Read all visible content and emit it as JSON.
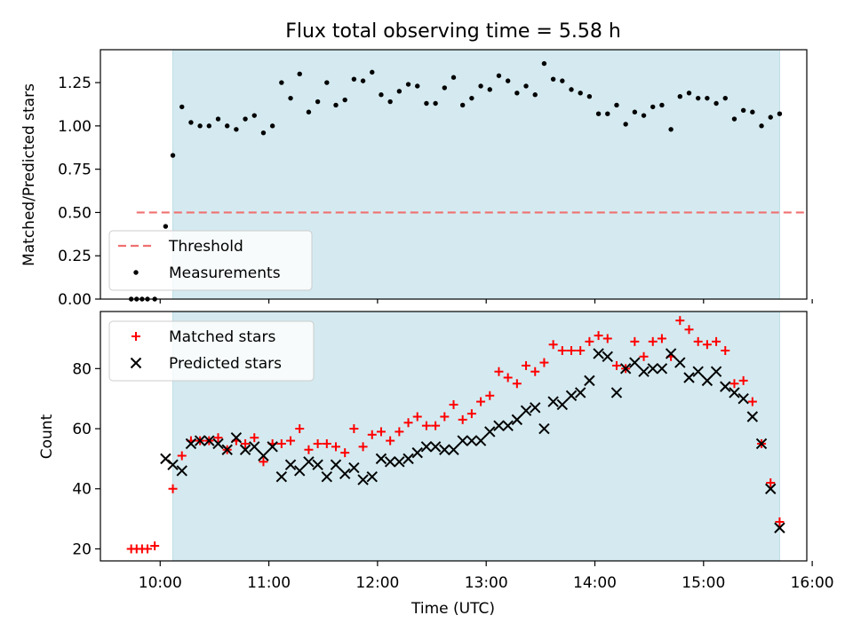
{
  "chart_data": [
    {
      "type": "scatter",
      "title": "Flux total observing time = 5.58 h",
      "xlabel": "",
      "ylabel": "Matched/Predicted stars",
      "xlim": [
        "09:27",
        "15:57"
      ],
      "ylim": [
        0,
        1.44
      ],
      "y_ticks": [
        "0.00",
        "0.25",
        "0.50",
        "0.75",
        "1.00",
        "1.25"
      ],
      "shaded_interval": [
        "10:07",
        "15:42"
      ],
      "threshold": 0.5,
      "legend": {
        "placement": "lower-left",
        "entries": [
          "Threshold",
          "Measurements"
        ]
      },
      "series": [
        {
          "name": "Measurements",
          "points": [
            [
              "09:44",
              0
            ],
            [
              "09:47",
              0
            ],
            [
              "09:50",
              0
            ],
            [
              "09:53",
              0
            ],
            [
              "09:57",
              0
            ],
            [
              "10:03",
              0.42
            ],
            [
              "10:07",
              0.83
            ],
            [
              "10:12",
              1.11
            ],
            [
              "10:17",
              1.02
            ],
            [
              "10:22",
              1.0
            ],
            [
              "10:27",
              1.0
            ],
            [
              "10:32",
              1.04
            ],
            [
              "10:37",
              1.0
            ],
            [
              "10:42",
              0.98
            ],
            [
              "10:47",
              1.04
            ],
            [
              "10:52",
              1.06
            ],
            [
              "10:57",
              0.96
            ],
            [
              "11:02",
              1.0
            ],
            [
              "11:07",
              1.25
            ],
            [
              "11:12",
              1.16
            ],
            [
              "11:17",
              1.3
            ],
            [
              "11:22",
              1.08
            ],
            [
              "11:27",
              1.14
            ],
            [
              "11:32",
              1.25
            ],
            [
              "11:37",
              1.12
            ],
            [
              "11:42",
              1.15
            ],
            [
              "11:47",
              1.27
            ],
            [
              "11:52",
              1.26
            ],
            [
              "11:57",
              1.31
            ],
            [
              "12:02",
              1.18
            ],
            [
              "12:07",
              1.14
            ],
            [
              "12:12",
              1.2
            ],
            [
              "12:17",
              1.24
            ],
            [
              "12:22",
              1.23
            ],
            [
              "12:27",
              1.13
            ],
            [
              "12:32",
              1.13
            ],
            [
              "12:37",
              1.22
            ],
            [
              "12:42",
              1.28
            ],
            [
              "12:47",
              1.12
            ],
            [
              "12:52",
              1.16
            ],
            [
              "12:57",
              1.23
            ],
            [
              "13:02",
              1.21
            ],
            [
              "13:07",
              1.29
            ],
            [
              "13:12",
              1.26
            ],
            [
              "13:17",
              1.19
            ],
            [
              "13:22",
              1.23
            ],
            [
              "13:27",
              1.18
            ],
            [
              "13:32",
              1.36
            ],
            [
              "13:37",
              1.27
            ],
            [
              "13:42",
              1.26
            ],
            [
              "13:47",
              1.21
            ],
            [
              "13:52",
              1.19
            ],
            [
              "13:57",
              1.17
            ],
            [
              "14:02",
              1.07
            ],
            [
              "14:07",
              1.07
            ],
            [
              "14:12",
              1.12
            ],
            [
              "14:17",
              1.01
            ],
            [
              "14:22",
              1.08
            ],
            [
              "14:27",
              1.06
            ],
            [
              "14:32",
              1.11
            ],
            [
              "14:37",
              1.12
            ],
            [
              "14:42",
              0.98
            ],
            [
              "14:47",
              1.17
            ],
            [
              "14:52",
              1.19
            ],
            [
              "14:57",
              1.16
            ],
            [
              "15:02",
              1.16
            ],
            [
              "15:07",
              1.13
            ],
            [
              "15:12",
              1.16
            ],
            [
              "15:17",
              1.04
            ],
            [
              "15:22",
              1.09
            ],
            [
              "15:27",
              1.08
            ],
            [
              "15:32",
              1.0
            ],
            [
              "15:37",
              1.05
            ],
            [
              "15:42",
              1.07
            ]
          ]
        }
      ]
    },
    {
      "type": "scatter",
      "title": "",
      "xlabel": "Time (UTC)",
      "ylabel": "Count",
      "xlim": [
        "09:27",
        "15:57"
      ],
      "ylim": [
        16,
        99
      ],
      "x_ticks": [
        "10:00",
        "11:00",
        "12:00",
        "13:00",
        "14:00",
        "15:00",
        "16:00"
      ],
      "y_ticks": [
        "20",
        "40",
        "60",
        "80"
      ],
      "shaded_interval": [
        "10:07",
        "15:42"
      ],
      "legend": {
        "placement": "top-left",
        "entries": [
          "Matched stars",
          "Predicted stars"
        ]
      },
      "series": [
        {
          "name": "Matched stars",
          "color": "#ff0000",
          "marker": "plus",
          "points": [
            [
              "09:44",
              20
            ],
            [
              "09:47",
              20
            ],
            [
              "09:50",
              20
            ],
            [
              "09:53",
              20
            ],
            [
              "09:57",
              21
            ],
            [
              "10:07",
              40
            ],
            [
              "10:12",
              51
            ],
            [
              "10:17",
              56
            ],
            [
              "10:22",
              56
            ],
            [
              "10:27",
              56
            ],
            [
              "10:32",
              57
            ],
            [
              "10:37",
              53
            ],
            [
              "10:42",
              56
            ],
            [
              "10:47",
              55
            ],
            [
              "10:52",
              57
            ],
            [
              "10:57",
              49
            ],
            [
              "11:02",
              55
            ],
            [
              "11:07",
              55
            ],
            [
              "11:12",
              56
            ],
            [
              "11:17",
              60
            ],
            [
              "11:22",
              53
            ],
            [
              "11:27",
              55
            ],
            [
              "11:32",
              55
            ],
            [
              "11:37",
              54
            ],
            [
              "11:42",
              52
            ],
            [
              "11:47",
              60
            ],
            [
              "11:52",
              54
            ],
            [
              "11:57",
              58
            ],
            [
              "12:02",
              59
            ],
            [
              "12:07",
              56
            ],
            [
              "12:12",
              59
            ],
            [
              "12:17",
              62
            ],
            [
              "12:22",
              64
            ],
            [
              "12:27",
              61
            ],
            [
              "12:32",
              61
            ],
            [
              "12:37",
              64
            ],
            [
              "12:42",
              68
            ],
            [
              "12:47",
              63
            ],
            [
              "12:52",
              65
            ],
            [
              "12:57",
              69
            ],
            [
              "13:02",
              71
            ],
            [
              "13:07",
              79
            ],
            [
              "13:12",
              77
            ],
            [
              "13:17",
              75
            ],
            [
              "13:22",
              81
            ],
            [
              "13:27",
              79
            ],
            [
              "13:32",
              82
            ],
            [
              "13:37",
              88
            ],
            [
              "13:42",
              86
            ],
            [
              "13:47",
              86
            ],
            [
              "13:52",
              86
            ],
            [
              "13:57",
              89
            ],
            [
              "14:02",
              91
            ],
            [
              "14:07",
              90
            ],
            [
              "14:12",
              81
            ],
            [
              "14:17",
              80
            ],
            [
              "14:22",
              89
            ],
            [
              "14:27",
              84
            ],
            [
              "14:32",
              89
            ],
            [
              "14:37",
              90
            ],
            [
              "14:42",
              84
            ],
            [
              "14:47",
              96
            ],
            [
              "14:52",
              93
            ],
            [
              "14:57",
              89
            ],
            [
              "15:02",
              88
            ],
            [
              "15:07",
              89
            ],
            [
              "15:12",
              86
            ],
            [
              "15:17",
              75
            ],
            [
              "15:22",
              76
            ],
            [
              "15:27",
              69
            ],
            [
              "15:32",
              55
            ],
            [
              "15:37",
              42
            ],
            [
              "15:42",
              29
            ]
          ]
        },
        {
          "name": "Predicted stars",
          "color": "#000000",
          "marker": "x",
          "points": [
            [
              "10:03",
              50
            ],
            [
              "10:07",
              48
            ],
            [
              "10:12",
              46
            ],
            [
              "10:17",
              55
            ],
            [
              "10:22",
              56
            ],
            [
              "10:27",
              56
            ],
            [
              "10:32",
              55
            ],
            [
              "10:37",
              53
            ],
            [
              "10:42",
              57
            ],
            [
              "10:47",
              53
            ],
            [
              "10:52",
              54
            ],
            [
              "10:57",
              51
            ],
            [
              "11:02",
              54
            ],
            [
              "11:07",
              44
            ],
            [
              "11:12",
              48
            ],
            [
              "11:17",
              46
            ],
            [
              "11:22",
              49
            ],
            [
              "11:27",
              48
            ],
            [
              "11:32",
              44
            ],
            [
              "11:37",
              48
            ],
            [
              "11:42",
              45
            ],
            [
              "11:47",
              47
            ],
            [
              "11:52",
              43
            ],
            [
              "11:57",
              44
            ],
            [
              "12:02",
              50
            ],
            [
              "12:07",
              49
            ],
            [
              "12:12",
              49
            ],
            [
              "12:17",
              50
            ],
            [
              "12:22",
              52
            ],
            [
              "12:27",
              54
            ],
            [
              "12:32",
              54
            ],
            [
              "12:37",
              53
            ],
            [
              "12:42",
              53
            ],
            [
              "12:47",
              56
            ],
            [
              "12:52",
              56
            ],
            [
              "12:57",
              56
            ],
            [
              "13:02",
              59
            ],
            [
              "13:07",
              61
            ],
            [
              "13:12",
              61
            ],
            [
              "13:17",
              63
            ],
            [
              "13:22",
              66
            ],
            [
              "13:27",
              67
            ],
            [
              "13:32",
              60
            ],
            [
              "13:37",
              69
            ],
            [
              "13:42",
              68
            ],
            [
              "13:47",
              71
            ],
            [
              "13:52",
              72
            ],
            [
              "13:57",
              76
            ],
            [
              "14:02",
              85
            ],
            [
              "14:07",
              84
            ],
            [
              "14:12",
              72
            ],
            [
              "14:17",
              80
            ],
            [
              "14:22",
              82
            ],
            [
              "14:27",
              79
            ],
            [
              "14:32",
              80
            ],
            [
              "14:37",
              80
            ],
            [
              "14:42",
              85
            ],
            [
              "14:47",
              82
            ],
            [
              "14:52",
              77
            ],
            [
              "14:57",
              79
            ],
            [
              "15:02",
              76
            ],
            [
              "15:07",
              79
            ],
            [
              "15:12",
              74
            ],
            [
              "15:17",
              72
            ],
            [
              "15:22",
              70
            ],
            [
              "15:27",
              64
            ],
            [
              "15:32",
              55
            ],
            [
              "15:37",
              40
            ],
            [
              "15:42",
              27
            ]
          ]
        }
      ]
    }
  ],
  "colors": {
    "shade": "#d4eaf0",
    "shade_edge": "#bcdde6",
    "threshold": "#f07070",
    "matched": "#ff0000",
    "predicted": "#000000"
  }
}
